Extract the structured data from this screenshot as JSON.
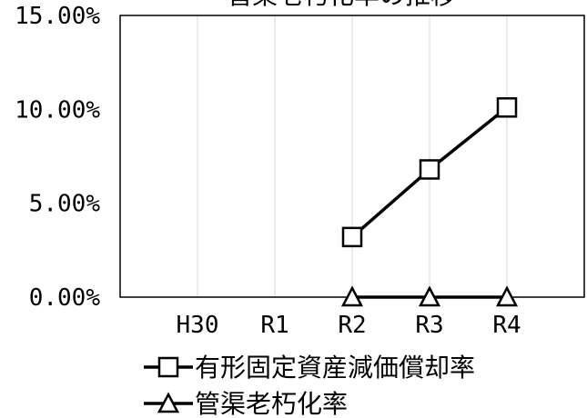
{
  "chart_data": {
    "type": "line",
    "title": "管渠老朽化率の推移",
    "categories": [
      "H30",
      "R1",
      "R2",
      "R3",
      "R4"
    ],
    "ylim": [
      0,
      15
    ],
    "y_ticks": [
      "0.00%",
      "5.00%",
      "10.00%",
      "15.00%"
    ],
    "y_tick_values": [
      0,
      5,
      10,
      15
    ],
    "grid": true,
    "legend_position": "bottom",
    "series": [
      {
        "name": "有形固定資産減価償却率",
        "marker": "square",
        "values": [
          null,
          null,
          3.2,
          6.8,
          10.1
        ]
      },
      {
        "name": "管渠老朽化率",
        "marker": "triangle",
        "values": [
          null,
          null,
          0.0,
          0.0,
          0.0
        ]
      }
    ]
  }
}
